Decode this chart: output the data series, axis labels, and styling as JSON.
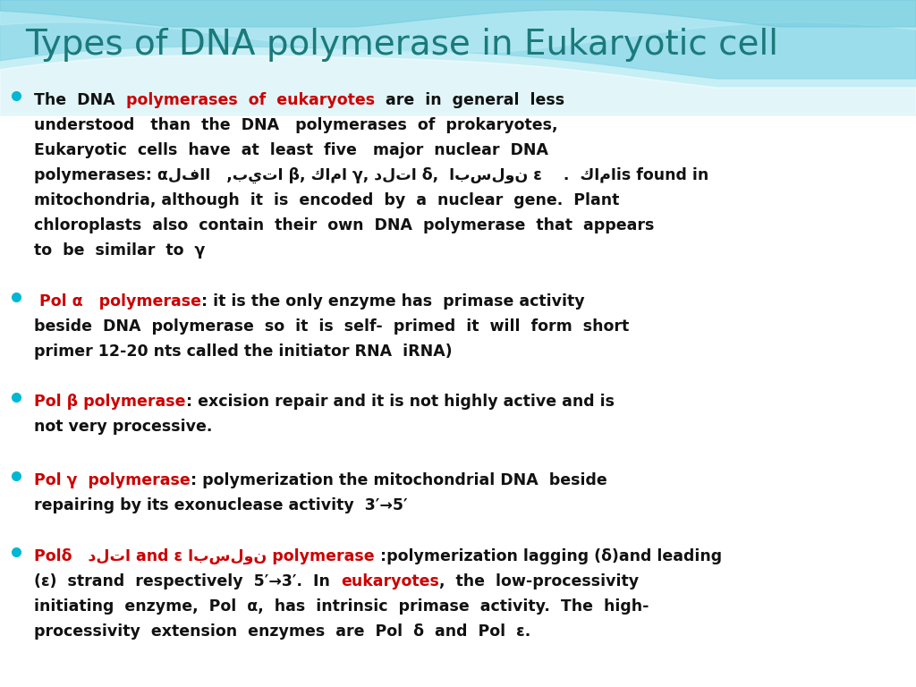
{
  "title": "Types of DNA polymerase in Eukaryotic cell",
  "title_color": "#1a7a7a",
  "title_fontsize": 28,
  "bullet_color": "#00b8d4",
  "red_color": "#cc0000",
  "black_color": "#111111",
  "body_fontsize": 12.5,
  "bullet1_black1": "The  DNA  ",
  "bullet1_red": "polymerases  of  eukaryotes",
  "bullet1_black2": "  are  in  general  less\nunderstood   than  the  DNA   polymerases  of  prokaryotes,\nEukaryotic  cells  have  at  least  five   major  nuclear  DNA\npolymerases: αلفاا   ,بيتا β, كاما γ, دلتا δ,  ابسلون ε    .  كاماis found in\nmitochondria, although  it  is  encoded  by  a  nuclear  gene.  Plant\nchloroplasts  also  contain  their  own  DNA  polymerase  that  appears\nto  be  similar  to  γ",
  "bullet2_red": " Pol α   polymerase",
  "bullet2_black": ": it is the only enzyme has  primase activity\nbeside  DNA  polymerase  so  it  is  self-  primed  it  will  form  short\nprimer 12-20 nts called the initiator RNA  iRNA)",
  "bullet3_red": "Pol β polymerase",
  "bullet3_black": ": excision repair and it is not highly active and is\nnot very processive.",
  "bullet4_red": "Pol γ  polymerase",
  "bullet4_black": ": polymerization the mitochondrial DNA  beside\nrepairing by its exonuclease activity  3′→5′",
  "bullet5_red": "Polδ   دلتا and ε ابسلون polymerase",
  "bullet5_black1": " :polymerization lagging (δ)and leading\n(ε)  strand  respectively  5′→3′.  In  ",
  "bullet5_red2": "eukaryotes",
  "bullet5_black2": ",  the  low-processivity\ninitiating  enzyme,  Pol  α,  has  intrinsic  primase  activity.  The  high-\nprocessivity  extension  enzymes  are  Pol  δ  and  Pol  ε."
}
